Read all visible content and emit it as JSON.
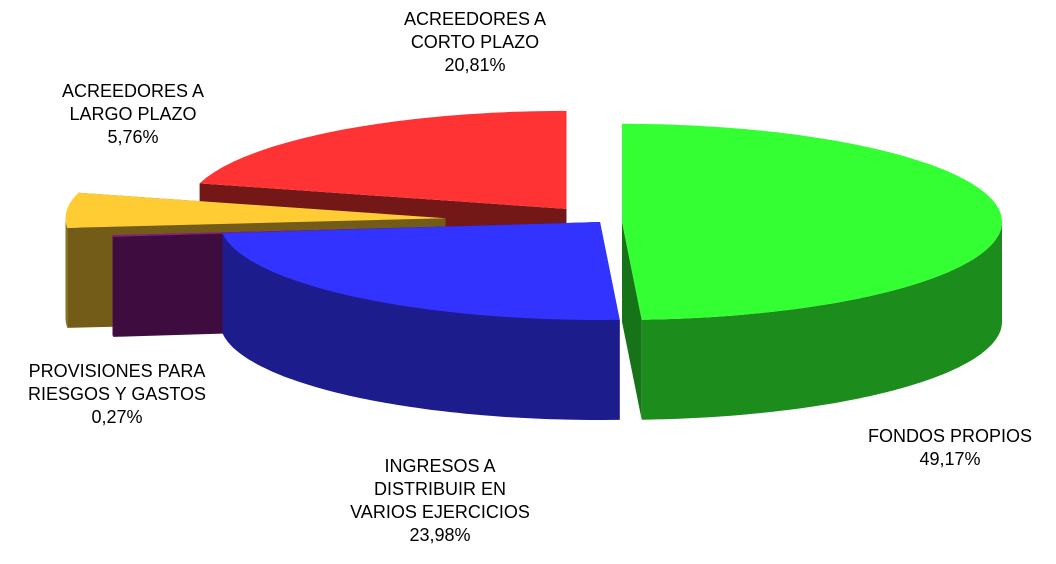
{
  "chart_data": {
    "type": "pie3d",
    "categories": [
      "FONDOS PROPIOS",
      "INGRESOS A DISTRIBUIR EN VARIOS EJERCICIOS",
      "PROVISIONES PARA RIESGOS Y GASTOS",
      "ACREEDORES A LARGO PLAZO",
      "ACREEDORES A CORTO PLAZO"
    ],
    "values": [
      49.17,
      23.98,
      0.27,
      5.76,
      20.81
    ],
    "value_labels": [
      "49,17%",
      "23,98%",
      "0,27%",
      "5,76%",
      "20,81%"
    ],
    "colors": [
      "#33ff33",
      "#3333ff",
      "#8b1a8b",
      "#ffcc33",
      "#ff3333"
    ]
  }
}
